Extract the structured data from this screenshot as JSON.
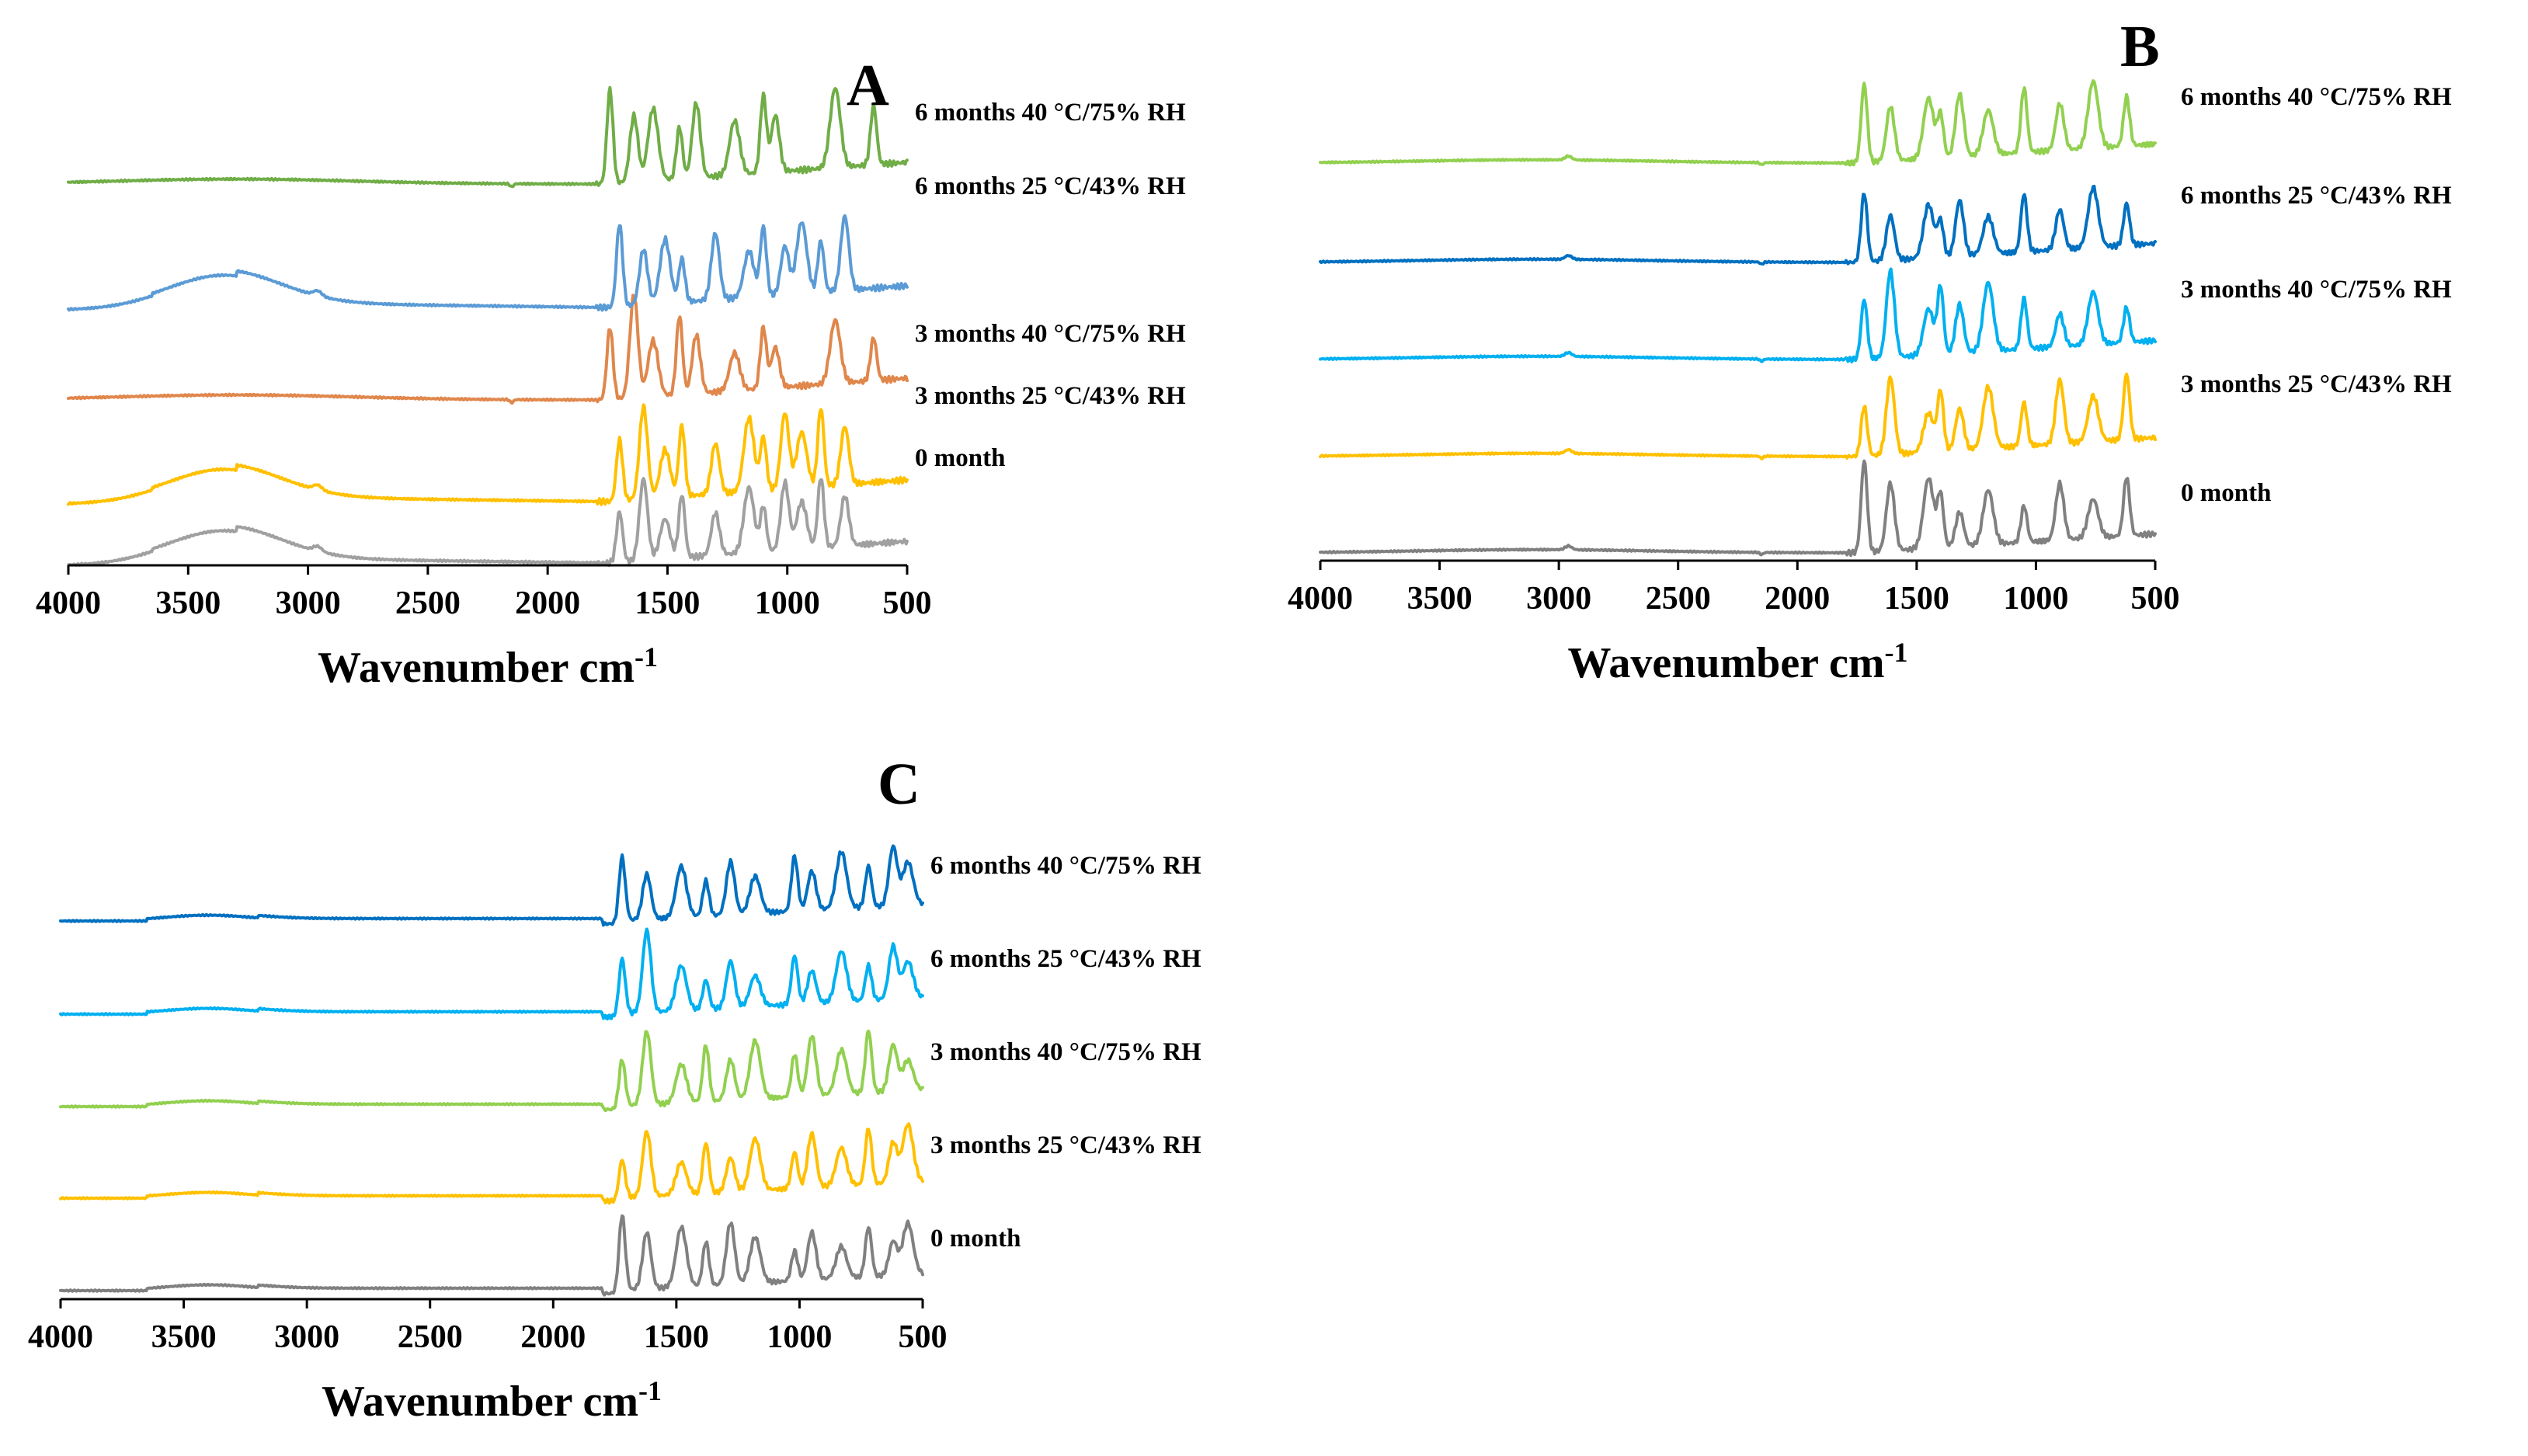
{
  "chart_data": [
    {
      "type": "line",
      "panel": "A",
      "xlabel": "Wavenumber cm",
      "xlabel_sup": "-1",
      "xlim": [
        4000,
        500
      ],
      "xticks": [
        4000,
        3500,
        3000,
        2500,
        2000,
        1500,
        1000,
        500
      ],
      "series": [
        {
          "name": "0 month",
          "color": "#a0a0a0",
          "profile": "hydrated",
          "peaks": [
            1700,
            1600,
            1510,
            1440,
            1300,
            1160,
            1100,
            1010,
            940,
            860,
            760
          ]
        },
        {
          "name": "3 months 25 °C/43% RH",
          "color": "#ffc000",
          "profile": "hydrated",
          "peaks": [
            1700,
            1600,
            1510,
            1440,
            1300,
            1160,
            1100,
            1010,
            940,
            860,
            760
          ]
        },
        {
          "name": "3 months 40 °C/75% RH",
          "color": "#e0874c",
          "profile": "dry",
          "peaks": [
            1740,
            1640,
            1560,
            1450,
            1380,
            1220,
            1100,
            1050,
            800,
            640
          ]
        },
        {
          "name": "6 months 25 °C/43% RH",
          "color": "#5b9bd5",
          "profile": "hydrated",
          "peaks": [
            1700,
            1600,
            1510,
            1440,
            1300,
            1160,
            1100,
            1010,
            940,
            860,
            760
          ]
        },
        {
          "name": "6 months 40 °C/75% RH",
          "color": "#70ad47",
          "profile": "dry",
          "peaks": [
            1740,
            1640,
            1560,
            1450,
            1380,
            1220,
            1100,
            1050,
            800,
            640
          ]
        }
      ]
    },
    {
      "type": "line",
      "panel": "B",
      "xlabel": "Wavenumber cm",
      "xlabel_sup": "-1",
      "xlim": [
        4000,
        500
      ],
      "xticks": [
        4000,
        3500,
        3000,
        2500,
        2000,
        1500,
        1000,
        500
      ],
      "series": [
        {
          "name": "0 month",
          "color": "#808080",
          "profile": "flat",
          "peaks": [
            1720,
            1610,
            1450,
            1400,
            1320,
            1200,
            1050,
            900,
            760,
            620
          ]
        },
        {
          "name": "3 months 25 °C/43% RH",
          "color": "#ffc000",
          "profile": "flat",
          "peaks": [
            1720,
            1610,
            1450,
            1400,
            1320,
            1200,
            1050,
            900,
            760,
            620
          ]
        },
        {
          "name": "3 months 40 °C/75% RH",
          "color": "#00b0f0",
          "profile": "flat",
          "peaks": [
            1720,
            1610,
            1450,
            1400,
            1320,
            1200,
            1050,
            900,
            760,
            620
          ]
        },
        {
          "name": "6 months 25 °C/43% RH",
          "color": "#0070c0",
          "profile": "flat",
          "peaks": [
            1720,
            1610,
            1450,
            1400,
            1320,
            1200,
            1050,
            900,
            760,
            620
          ]
        },
        {
          "name": "6 months 40 °C/75% RH",
          "color": "#92d050",
          "profile": "flat",
          "peaks": [
            1720,
            1610,
            1450,
            1400,
            1320,
            1200,
            1050,
            900,
            760,
            620
          ]
        }
      ]
    },
    {
      "type": "line",
      "panel": "C",
      "xlabel": "Wavenumber cm",
      "xlabel_sup": "-1",
      "xlim": [
        4000,
        500
      ],
      "xticks": [
        4000,
        3500,
        3000,
        2500,
        2000,
        1500,
        1000,
        500
      ],
      "series": [
        {
          "name": "0 month",
          "color": "#808080",
          "profile": "bump",
          "peaks": [
            1720,
            1620,
            1480,
            1380,
            1280,
            1180,
            1020,
            950,
            830,
            720,
            620,
            560
          ]
        },
        {
          "name": "3 months 25 °C/43% RH",
          "color": "#ffc000",
          "profile": "bump",
          "peaks": [
            1720,
            1620,
            1480,
            1380,
            1280,
            1180,
            1020,
            950,
            830,
            720,
            620,
            560
          ]
        },
        {
          "name": "3 months 40 °C/75% RH",
          "color": "#92d050",
          "profile": "bump",
          "peaks": [
            1720,
            1620,
            1480,
            1380,
            1280,
            1180,
            1020,
            950,
            830,
            720,
            620,
            560
          ]
        },
        {
          "name": "6 months 25 °C/43% RH",
          "color": "#00b0f0",
          "profile": "bump",
          "peaks": [
            1720,
            1620,
            1480,
            1380,
            1280,
            1180,
            1020,
            950,
            830,
            720,
            620,
            560
          ]
        },
        {
          "name": "6 months 40 °C/75% RH",
          "color": "#0070c0",
          "profile": "bump",
          "peaks": [
            1720,
            1620,
            1480,
            1380,
            1280,
            1180,
            1020,
            950,
            830,
            720,
            620,
            560
          ]
        }
      ]
    }
  ]
}
